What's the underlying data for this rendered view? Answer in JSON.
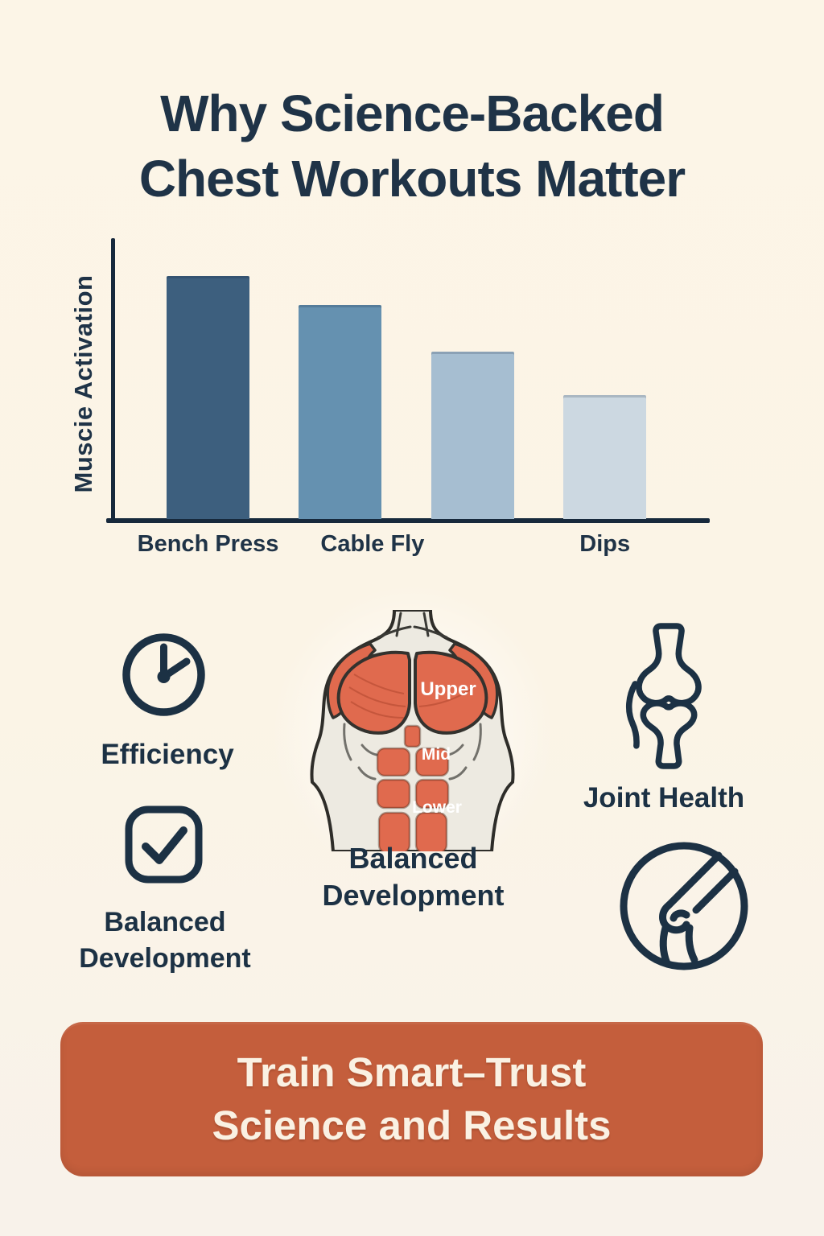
{
  "page": {
    "background_color": "#fbf4e6",
    "accent_color": "#c45e3c",
    "navy_color": "#1f3347"
  },
  "header": {
    "title_line1": "Why Science-Backed",
    "title_line2": "Chest Workouts Matter"
  },
  "chart_data": {
    "type": "bar",
    "title": "",
    "ylabel": "Muscie Activation",
    "xlabel": "",
    "categories": [
      "Bench Press",
      "Cable Fly",
      "",
      "Dips"
    ],
    "values": [
      100,
      88,
      69,
      51
    ],
    "ylim": [
      0,
      115
    ],
    "grid": false,
    "legend": "none",
    "bar_colors": [
      "#3d5f7e",
      "#6591b0",
      "#a6bed1",
      "#ccd8e1"
    ],
    "axis_color": "#17293c"
  },
  "features": {
    "efficiency": {
      "label": "Efficiency",
      "icon": "clock-icon"
    },
    "balanced_development_left": {
      "label": "Balanced Development",
      "icon": "checkbox-check-icon"
    },
    "balanced_development_center": {
      "label": "Balanced Development",
      "icon": "chest-muscle-diagram",
      "regions": {
        "upper": "Upper",
        "mid": "Mid",
        "lower": "Lower"
      },
      "muscle_color": "#e06a4e"
    },
    "joint_health": {
      "label": "Joint Health",
      "icon": "knee-joint-icon",
      "secondary_icon": "knee-joint-circle-icon"
    }
  },
  "cta": {
    "line1": "Train Smart–Trust",
    "line2": "Science and Results",
    "background_color": "#c45e3c",
    "text_color": "#faf1e3"
  }
}
